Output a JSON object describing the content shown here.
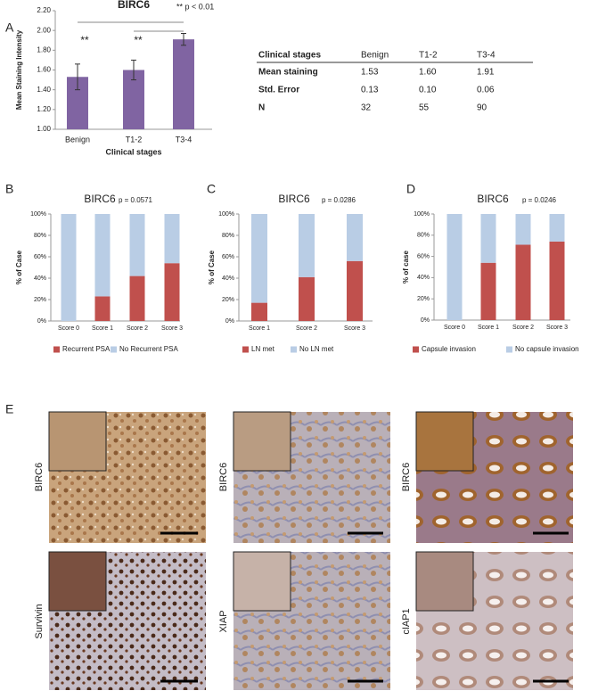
{
  "panel_labels": [
    "A",
    "B",
    "C",
    "D",
    "E"
  ],
  "chart_data": [
    {
      "type": "bar",
      "title": "BIRC6",
      "ylabel": "Mean Staining Intensity",
      "xlabel": "Clinical stages",
      "categories": [
        "Benign",
        "T1-2",
        "T3-4"
      ],
      "values": [
        1.53,
        1.6,
        1.91
      ],
      "errors": [
        0.13,
        0.1,
        0.06
      ],
      "color": "#8064a2",
      "ylim": [
        1.0,
        2.2
      ],
      "yticks": [
        {
          "value": 1.0,
          "label": "1.00"
        },
        {
          "value": 1.2,
          "label": "1.20"
        },
        {
          "value": 1.4,
          "label": "1.40"
        },
        {
          "value": 1.6,
          "label": "1.60"
        },
        {
          "value": 1.8,
          "label": "1.80"
        },
        {
          "value": 2.0,
          "label": "2.00"
        },
        {
          "value": 2.2,
          "label": "2.20"
        }
      ],
      "annotations": [
        "**",
        "**",
        "** p < 0.01"
      ]
    },
    {
      "type": "stacked_bar",
      "title": "BIRC6",
      "ylabel": "% of Case",
      "annotations": [
        "p = 0.0571"
      ],
      "categories": [
        "Score 0",
        "Score 1",
        "Score 2",
        "Score 3"
      ],
      "series": [
        {
          "name": "Recurrent PSA",
          "color": "#c0504d",
          "values": [
            0,
            23,
            42,
            54
          ]
        },
        {
          "name": "No Recurrent PSA",
          "color": "#b9cde5",
          "values": [
            100,
            77,
            58,
            46
          ]
        }
      ],
      "ylim": [
        0,
        100
      ],
      "yticks": [
        {
          "value": 0,
          "label": "0%"
        },
        {
          "value": 20,
          "label": "20%"
        },
        {
          "value": 40,
          "label": "40%"
        },
        {
          "value": 60,
          "label": "60%"
        },
        {
          "value": 80,
          "label": "80%"
        },
        {
          "value": 100,
          "label": "100%"
        }
      ]
    },
    {
      "type": "stacked_bar",
      "title": "BIRC6",
      "ylabel": "% of Case",
      "annotations": [
        "p = 0.0286"
      ],
      "categories": [
        "Score 1",
        "Score 2",
        "Score 3"
      ],
      "series": [
        {
          "name": "LN met",
          "color": "#c0504d",
          "values": [
            17,
            41,
            56
          ]
        },
        {
          "name": "No LN met",
          "color": "#b9cde5",
          "values": [
            83,
            59,
            44
          ]
        }
      ],
      "ylim": [
        0,
        100
      ],
      "yticks": [
        {
          "value": 0,
          "label": "0%"
        },
        {
          "value": 20,
          "label": "20%"
        },
        {
          "value": 40,
          "label": "40%"
        },
        {
          "value": 60,
          "label": "60%"
        },
        {
          "value": 80,
          "label": "80%"
        },
        {
          "value": 100,
          "label": "100%"
        }
      ]
    },
    {
      "type": "stacked_bar",
      "title": "BIRC6",
      "ylabel": "% of case",
      "annotations": [
        "p = 0.0246"
      ],
      "categories": [
        "Score 0",
        "Score 1",
        "Score 2",
        "Score 3"
      ],
      "series": [
        {
          "name": "Capsule invasion",
          "color": "#c0504d",
          "values": [
            0,
            54,
            71,
            74
          ]
        },
        {
          "name": "No capsule invasion",
          "color": "#b9cde5",
          "values": [
            100,
            46,
            29,
            26
          ]
        }
      ],
      "ylim": [
        0,
        100
      ],
      "yticks": [
        {
          "value": 0,
          "label": "0%"
        },
        {
          "value": 20,
          "label": "20%"
        },
        {
          "value": 40,
          "label": "40%"
        },
        {
          "value": 60,
          "label": "60%"
        },
        {
          "value": 80,
          "label": "80%"
        },
        {
          "value": 100,
          "label": "100%"
        }
      ]
    }
  ],
  "table": {
    "header": [
      "Clinical stages",
      "Benign",
      "T1-2",
      "T3-4"
    ],
    "rows": [
      [
        "Mean staining",
        "1.53",
        "1.60",
        "1.91"
      ],
      [
        "Std. Error",
        "0.13",
        "0.10",
        "0.06"
      ],
      [
        "N",
        "32",
        "55",
        "90"
      ]
    ]
  },
  "micrographs": {
    "rows": [
      [
        "BIRC6",
        "BIRC6",
        "BIRC6"
      ],
      [
        "Survivin",
        "XIAP",
        "cIAP1"
      ]
    ]
  }
}
